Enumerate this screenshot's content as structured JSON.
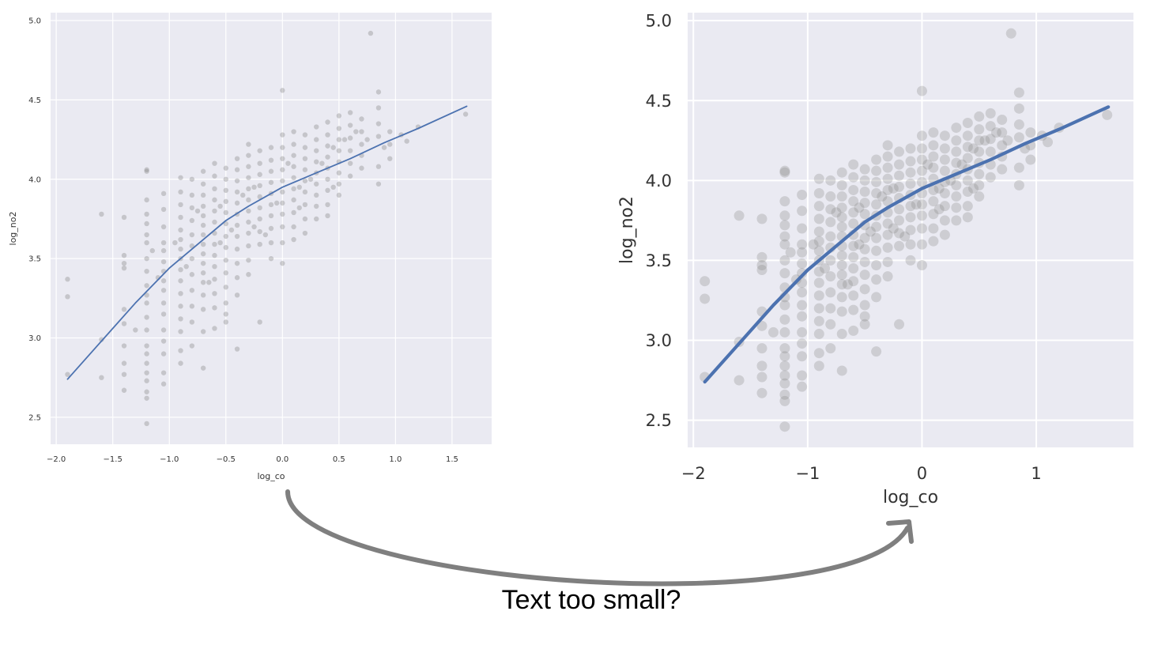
{
  "caption": "Text too small?",
  "colors": {
    "background": "#EAEAF2",
    "grid": "#FFFFFF",
    "points": "#808080",
    "line": "#4C72B0",
    "arrow": "#7F7F7F",
    "tick_text": "#333333"
  },
  "arrow_icon": "curved-arrow-icon",
  "chart_data": [
    {
      "type": "scatter",
      "title": "",
      "xlabel": "log_co",
      "ylabel": "log_no2",
      "xlim": [
        -2.05,
        1.85
      ],
      "ylim": [
        2.33,
        5.05
      ],
      "xticks": [
        -2.0,
        -1.5,
        -1.0,
        -0.5,
        0.0,
        0.5,
        1.0,
        1.5
      ],
      "xtick_labels": [
        "−2.0",
        "−1.5",
        "−1.0",
        "−0.5",
        "0.0",
        "0.5",
        "1.0",
        "1.5"
      ],
      "yticks": [
        2.5,
        3.0,
        3.5,
        4.0,
        4.5,
        5.0
      ],
      "ytick_labels": [
        "2.5",
        "3.0",
        "3.5",
        "4.0",
        "4.5",
        "5.0"
      ],
      "grid": true,
      "series": [
        {
          "kind": "points"
        },
        {
          "kind": "fit-line",
          "x": [
            -1.9,
            -1.6,
            -1.3,
            -1.0,
            -0.7,
            -0.5,
            -0.3,
            0.0,
            0.3,
            0.6,
            0.9,
            1.2,
            1.63
          ],
          "y": [
            2.74,
            2.98,
            3.22,
            3.44,
            3.62,
            3.74,
            3.83,
            3.95,
            4.04,
            4.13,
            4.23,
            4.32,
            4.46
          ]
        }
      ]
    },
    {
      "type": "scatter",
      "title": "",
      "xlabel": "log_co",
      "ylabel": "log_no2",
      "xlim": [
        -2.05,
        1.85
      ],
      "ylim": [
        2.33,
        5.05
      ],
      "xticks": [
        -2,
        -1,
        0,
        1
      ],
      "xtick_labels": [
        "−2",
        "−1",
        "0",
        "1"
      ],
      "yticks": [
        2.5,
        3.0,
        3.5,
        4.0,
        4.5,
        5.0
      ],
      "ytick_labels": [
        "2.5",
        "3.0",
        "3.5",
        "4.0",
        "4.5",
        "5.0"
      ],
      "grid": true,
      "series": [
        {
          "kind": "points"
        },
        {
          "kind": "fit-line",
          "x": [
            -1.9,
            -1.6,
            -1.3,
            -1.0,
            -0.7,
            -0.5,
            -0.3,
            0.0,
            0.3,
            0.6,
            0.9,
            1.2,
            1.63
          ],
          "y": [
            2.74,
            2.98,
            3.22,
            3.44,
            3.62,
            3.74,
            3.83,
            3.95,
            4.04,
            4.13,
            4.23,
            4.32,
            4.46
          ]
        }
      ]
    }
  ],
  "points": [
    [
      -1.9,
      3.37
    ],
    [
      -1.9,
      3.26
    ],
    [
      -1.9,
      2.77
    ],
    [
      -1.6,
      3.78
    ],
    [
      -1.6,
      2.99
    ],
    [
      -1.6,
      2.75
    ],
    [
      -1.4,
      3.76
    ],
    [
      -1.4,
      3.52
    ],
    [
      -1.4,
      3.47
    ],
    [
      -1.4,
      3.44
    ],
    [
      -1.4,
      3.18
    ],
    [
      -1.4,
      3.09
    ],
    [
      -1.4,
      2.95
    ],
    [
      -1.4,
      2.84
    ],
    [
      -1.4,
      2.77
    ],
    [
      -1.4,
      2.67
    ],
    [
      -1.2,
      4.06
    ],
    [
      -1.2,
      4.05
    ],
    [
      -1.2,
      3.87
    ],
    [
      -1.2,
      3.78
    ],
    [
      -1.2,
      3.72
    ],
    [
      -1.2,
      3.65
    ],
    [
      -1.2,
      3.6
    ],
    [
      -1.2,
      3.5
    ],
    [
      -1.2,
      3.42
    ],
    [
      -1.2,
      3.33
    ],
    [
      -1.2,
      3.27
    ],
    [
      -1.2,
      3.22
    ],
    [
      -1.2,
      3.13
    ],
    [
      -1.2,
      3.05
    ],
    [
      -1.2,
      2.95
    ],
    [
      -1.2,
      2.9
    ],
    [
      -1.2,
      2.84
    ],
    [
      -1.2,
      2.78
    ],
    [
      -1.2,
      2.73
    ],
    [
      -1.2,
      2.66
    ],
    [
      -1.2,
      2.62
    ],
    [
      -1.2,
      2.46
    ],
    [
      -1.05,
      3.91
    ],
    [
      -1.05,
      3.81
    ],
    [
      -1.05,
      3.7
    ],
    [
      -1.05,
      3.6
    ],
    [
      -1.05,
      3.55
    ],
    [
      -1.05,
      3.48
    ],
    [
      -1.05,
      3.42
    ],
    [
      -1.05,
      3.36
    ],
    [
      -1.05,
      3.3
    ],
    [
      -1.05,
      3.22
    ],
    [
      -1.05,
      3.15
    ],
    [
      -1.05,
      3.05
    ],
    [
      -1.05,
      2.98
    ],
    [
      -1.05,
      2.9
    ],
    [
      -1.05,
      2.78
    ],
    [
      -1.05,
      2.71
    ],
    [
      -0.9,
      4.01
    ],
    [
      -0.9,
      3.92
    ],
    [
      -0.9,
      3.84
    ],
    [
      -0.9,
      3.76
    ],
    [
      -0.9,
      3.68
    ],
    [
      -0.9,
      3.62
    ],
    [
      -0.9,
      3.56
    ],
    [
      -0.9,
      3.5
    ],
    [
      -0.9,
      3.43
    ],
    [
      -0.9,
      3.36
    ],
    [
      -0.9,
      3.28
    ],
    [
      -0.9,
      3.2
    ],
    [
      -0.9,
      3.12
    ],
    [
      -0.9,
      3.04
    ],
    [
      -0.9,
      2.92
    ],
    [
      -0.9,
      2.84
    ],
    [
      -0.8,
      4.0
    ],
    [
      -0.8,
      3.9
    ],
    [
      -0.8,
      3.82
    ],
    [
      -0.8,
      3.74
    ],
    [
      -0.8,
      3.65
    ],
    [
      -0.8,
      3.58
    ],
    [
      -0.8,
      3.5
    ],
    [
      -0.8,
      3.4
    ],
    [
      -0.8,
      3.3
    ],
    [
      -0.8,
      3.2
    ],
    [
      -0.8,
      3.1
    ],
    [
      -0.8,
      2.95
    ],
    [
      -0.7,
      4.05
    ],
    [
      -0.7,
      3.97
    ],
    [
      -0.7,
      3.9
    ],
    [
      -0.7,
      3.83
    ],
    [
      -0.7,
      3.77
    ],
    [
      -0.7,
      3.71
    ],
    [
      -0.7,
      3.65
    ],
    [
      -0.7,
      3.59
    ],
    [
      -0.7,
      3.53
    ],
    [
      -0.7,
      3.47
    ],
    [
      -0.7,
      3.41
    ],
    [
      -0.7,
      3.35
    ],
    [
      -0.7,
      3.27
    ],
    [
      -0.7,
      3.18
    ],
    [
      -0.7,
      3.04
    ],
    [
      -0.7,
      2.81
    ],
    [
      -0.6,
      4.1
    ],
    [
      -0.6,
      4.02
    ],
    [
      -0.6,
      3.94
    ],
    [
      -0.6,
      3.87
    ],
    [
      -0.6,
      3.8
    ],
    [
      -0.6,
      3.73
    ],
    [
      -0.6,
      3.66
    ],
    [
      -0.6,
      3.59
    ],
    [
      -0.6,
      3.52
    ],
    [
      -0.6,
      3.45
    ],
    [
      -0.6,
      3.37
    ],
    [
      -0.6,
      3.28
    ],
    [
      -0.6,
      3.19
    ],
    [
      -0.6,
      3.06
    ],
    [
      -0.5,
      4.07
    ],
    [
      -0.5,
      4.0
    ],
    [
      -0.5,
      3.93
    ],
    [
      -0.5,
      3.86
    ],
    [
      -0.5,
      3.79
    ],
    [
      -0.5,
      3.72
    ],
    [
      -0.5,
      3.64
    ],
    [
      -0.5,
      3.57
    ],
    [
      -0.5,
      3.49
    ],
    [
      -0.5,
      3.41
    ],
    [
      -0.5,
      3.32
    ],
    [
      -0.5,
      3.22
    ],
    [
      -0.5,
      3.15
    ],
    [
      -0.5,
      3.1
    ],
    [
      -0.4,
      4.13
    ],
    [
      -0.4,
      4.06
    ],
    [
      -0.4,
      3.99
    ],
    [
      -0.4,
      3.92
    ],
    [
      -0.4,
      3.85
    ],
    [
      -0.4,
      3.78
    ],
    [
      -0.4,
      3.71
    ],
    [
      -0.4,
      3.64
    ],
    [
      -0.4,
      3.56
    ],
    [
      -0.4,
      3.47
    ],
    [
      -0.4,
      3.38
    ],
    [
      -0.4,
      3.27
    ],
    [
      -0.4,
      2.93
    ],
    [
      -0.3,
      4.22
    ],
    [
      -0.3,
      4.15
    ],
    [
      -0.3,
      4.08
    ],
    [
      -0.3,
      4.01
    ],
    [
      -0.3,
      3.94
    ],
    [
      -0.3,
      3.87
    ],
    [
      -0.3,
      3.8
    ],
    [
      -0.3,
      3.73
    ],
    [
      -0.3,
      3.66
    ],
    [
      -0.3,
      3.58
    ],
    [
      -0.3,
      3.49
    ],
    [
      -0.3,
      3.4
    ],
    [
      -0.2,
      4.18
    ],
    [
      -0.2,
      4.1
    ],
    [
      -0.2,
      4.03
    ],
    [
      -0.2,
      3.96
    ],
    [
      -0.2,
      3.89
    ],
    [
      -0.2,
      3.82
    ],
    [
      -0.2,
      3.75
    ],
    [
      -0.2,
      3.67
    ],
    [
      -0.2,
      3.59
    ],
    [
      -0.2,
      3.1
    ],
    [
      -0.1,
      4.2
    ],
    [
      -0.1,
      4.12
    ],
    [
      -0.1,
      4.05
    ],
    [
      -0.1,
      3.98
    ],
    [
      -0.1,
      3.91
    ],
    [
      -0.1,
      3.84
    ],
    [
      -0.1,
      3.77
    ],
    [
      -0.1,
      3.69
    ],
    [
      -0.1,
      3.6
    ],
    [
      -0.1,
      3.5
    ],
    [
      0.0,
      4.56
    ],
    [
      0.0,
      4.28
    ],
    [
      0.0,
      4.2
    ],
    [
      0.0,
      4.13
    ],
    [
      0.0,
      4.06
    ],
    [
      0.0,
      3.99
    ],
    [
      0.0,
      3.92
    ],
    [
      0.0,
      3.85
    ],
    [
      0.0,
      3.78
    ],
    [
      0.0,
      3.7
    ],
    [
      0.0,
      3.6
    ],
    [
      0.0,
      3.47
    ],
    [
      0.1,
      4.3
    ],
    [
      0.1,
      4.22
    ],
    [
      0.1,
      4.15
    ],
    [
      0.1,
      4.08
    ],
    [
      0.1,
      4.01
    ],
    [
      0.1,
      3.94
    ],
    [
      0.1,
      3.87
    ],
    [
      0.1,
      3.79
    ],
    [
      0.1,
      3.7
    ],
    [
      0.1,
      3.62
    ],
    [
      0.2,
      4.28
    ],
    [
      0.2,
      4.2
    ],
    [
      0.2,
      4.13
    ],
    [
      0.2,
      4.06
    ],
    [
      0.2,
      3.99
    ],
    [
      0.2,
      3.92
    ],
    [
      0.2,
      3.84
    ],
    [
      0.2,
      3.75
    ],
    [
      0.2,
      3.66
    ],
    [
      0.3,
      4.33
    ],
    [
      0.3,
      4.25
    ],
    [
      0.3,
      4.18
    ],
    [
      0.3,
      4.11
    ],
    [
      0.3,
      4.04
    ],
    [
      0.3,
      3.97
    ],
    [
      0.3,
      3.9
    ],
    [
      0.3,
      3.83
    ],
    [
      0.3,
      3.75
    ],
    [
      0.4,
      4.36
    ],
    [
      0.4,
      4.28
    ],
    [
      0.4,
      4.21
    ],
    [
      0.4,
      4.14
    ],
    [
      0.4,
      4.07
    ],
    [
      0.4,
      4.0
    ],
    [
      0.4,
      3.93
    ],
    [
      0.4,
      3.84
    ],
    [
      0.4,
      3.77
    ],
    [
      0.5,
      4.4
    ],
    [
      0.5,
      4.32
    ],
    [
      0.5,
      4.25
    ],
    [
      0.5,
      4.18
    ],
    [
      0.5,
      4.11
    ],
    [
      0.5,
      4.04
    ],
    [
      0.5,
      3.97
    ],
    [
      0.5,
      3.9
    ],
    [
      0.6,
      4.42
    ],
    [
      0.6,
      4.34
    ],
    [
      0.6,
      4.26
    ],
    [
      0.6,
      4.18
    ],
    [
      0.6,
      4.1
    ],
    [
      0.6,
      4.02
    ],
    [
      0.7,
      4.38
    ],
    [
      0.7,
      4.3
    ],
    [
      0.7,
      4.22
    ],
    [
      0.7,
      4.15
    ],
    [
      0.7,
      4.07
    ],
    [
      0.78,
      4.92
    ],
    [
      0.85,
      4.55
    ],
    [
      0.85,
      4.45
    ],
    [
      0.85,
      4.35
    ],
    [
      0.85,
      4.27
    ],
    [
      0.85,
      4.08
    ],
    [
      0.85,
      3.97
    ],
    [
      0.95,
      4.3
    ],
    [
      0.95,
      4.22
    ],
    [
      0.95,
      4.13
    ],
    [
      1.05,
      4.28
    ],
    [
      1.2,
      4.33
    ],
    [
      1.62,
      4.41
    ],
    [
      -1.3,
      3.05
    ],
    [
      -1.1,
      3.38
    ],
    [
      -0.95,
      3.6
    ],
    [
      -0.75,
      3.8
    ],
    [
      -0.65,
      3.35
    ],
    [
      -0.55,
      3.6
    ],
    [
      -0.45,
      3.68
    ],
    [
      -0.35,
      3.9
    ],
    [
      -0.25,
      3.95
    ],
    [
      -0.15,
      3.65
    ],
    [
      -0.05,
      3.85
    ],
    [
      0.05,
      4.1
    ],
    [
      0.15,
      3.95
    ],
    [
      0.25,
      4.0
    ],
    [
      0.35,
      4.1
    ],
    [
      0.45,
      4.2
    ],
    [
      0.55,
      4.25
    ],
    [
      0.65,
      4.3
    ],
    [
      0.75,
      4.25
    ],
    [
      0.9,
      4.2
    ],
    [
      1.1,
      4.24
    ],
    [
      -1.15,
      3.55
    ],
    [
      -0.85,
      3.45
    ],
    [
      -0.55,
      3.83
    ],
    [
      -0.25,
      3.7
    ],
    [
      0.15,
      3.82
    ],
    [
      0.45,
      3.95
    ]
  ]
}
